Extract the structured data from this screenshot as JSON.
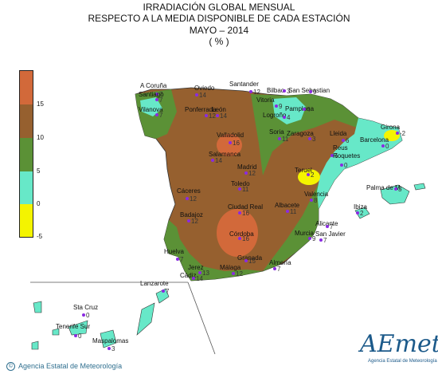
{
  "title": {
    "line1": "IRRADIACIÓN GLOBAL MENSUAL",
    "line2": "RESPECTO A LA MEDIA DISPONIBLE DE CADA ESTACIÓN",
    "line3": "MAYO – 2014",
    "line4": "( % )"
  },
  "legend": {
    "ticks": [
      "15",
      "10",
      "5",
      "0",
      "-5"
    ],
    "colors": [
      "#d2693a",
      "#96602f",
      "#5b9136",
      "#67e8c8",
      "#f4f400"
    ]
  },
  "colors": {
    "sea": "#ffffff",
    "station": "#8a2be2"
  },
  "stations": [
    {
      "name": "A Coruña",
      "value": "7"
    },
    {
      "name": "Santiago",
      "value": "7"
    },
    {
      "name": "Vilanova",
      "value": "7"
    },
    {
      "name": "Oviedo",
      "value": "14"
    },
    {
      "name": "Ponferrada",
      "value": "12"
    },
    {
      "name": "León",
      "value": "14"
    },
    {
      "name": "Santander",
      "value": "12"
    },
    {
      "name": "Bilbao",
      "value": "3"
    },
    {
      "name": "San Sebastian",
      "value": "9"
    },
    {
      "name": "Vitoria",
      "value": "9"
    },
    {
      "name": "Pamplona",
      "value": "4"
    },
    {
      "name": "Logroño",
      "value": "4"
    },
    {
      "name": "Valladolid",
      "value": "16"
    },
    {
      "name": "Soria",
      "value": "11"
    },
    {
      "name": "Zaragoza",
      "value": "3"
    },
    {
      "name": "Lleida",
      "value": "6"
    },
    {
      "name": "Girona",
      "value": "-2"
    },
    {
      "name": "Barcelona",
      "value": "0"
    },
    {
      "name": "Reus",
      "value": "5"
    },
    {
      "name": "Roquetes",
      "value": "0"
    },
    {
      "name": "Salamanca",
      "value": "14"
    },
    {
      "name": "Madrid",
      "value": "12"
    },
    {
      "name": "Teruel",
      "value": "2"
    },
    {
      "name": "Toledo",
      "value": "11"
    },
    {
      "name": "Cáceres",
      "value": "12"
    },
    {
      "name": "Valencia",
      "value": "8"
    },
    {
      "name": "Palma de M.",
      "value": "3"
    },
    {
      "name": "Ibiza",
      "value": "2"
    },
    {
      "name": "Ciudad Real",
      "value": "16"
    },
    {
      "name": "Albacete",
      "value": "11"
    },
    {
      "name": "Badajoz",
      "value": "12"
    },
    {
      "name": "Alicante",
      "value": "7"
    },
    {
      "name": "Córdoba",
      "value": "16"
    },
    {
      "name": "Murcia",
      "value": "9"
    },
    {
      "name": "San Javier",
      "value": "7"
    },
    {
      "name": "Huelva",
      "value": "7"
    },
    {
      "name": "Granada",
      "value": "15"
    },
    {
      "name": "Jerez",
      "value": "13"
    },
    {
      "name": "Almería",
      "value": "7"
    },
    {
      "name": "Cádiz",
      "value": "14"
    },
    {
      "name": "Málaga",
      "value": "12"
    },
    {
      "name": "Lanzarote",
      "value": "7"
    },
    {
      "name": "Sta Cruz",
      "value": "0"
    },
    {
      "name": "Tenerife Sur",
      "value": "0"
    },
    {
      "name": "Maspalomas",
      "value": "3"
    }
  ],
  "logo": {
    "text": "AEmet",
    "subtitle": "Agencia Estatal de Meteorología"
  },
  "footer": {
    "symbol": "©",
    "text": "Agencia Estatal de Meteorología"
  }
}
